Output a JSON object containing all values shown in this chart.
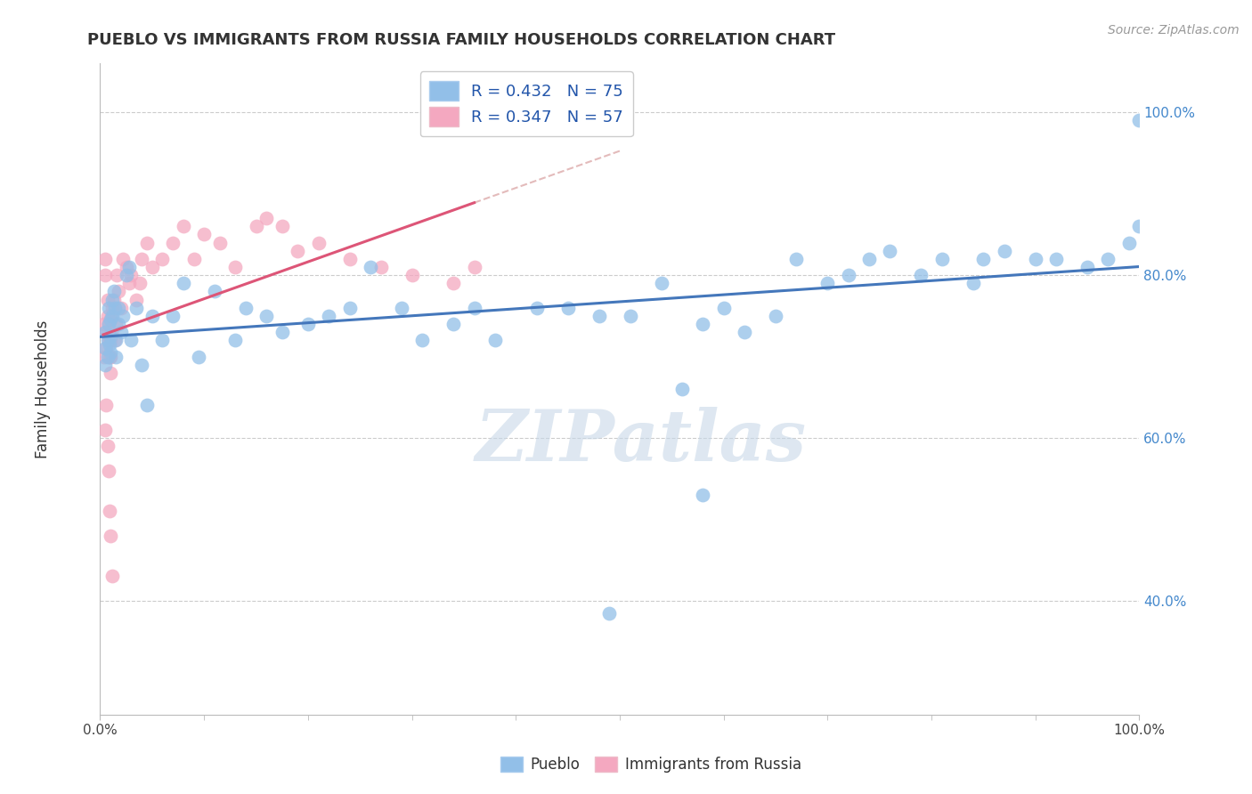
{
  "title": "PUEBLO VS IMMIGRANTS FROM RUSSIA FAMILY HOUSEHOLDS CORRELATION CHART",
  "source": "Source: ZipAtlas.com",
  "ylabel": "Family Households",
  "watermark": "ZIPatlas",
  "blue_color": "#92bfe8",
  "pink_color": "#f4a8c0",
  "blue_line_color": "#4477bb",
  "pink_line_color": "#dd5577",
  "pink_dash_color": "#ddaaaa",
  "grid_color": "#cccccc",
  "background_color": "#ffffff",
  "legend_R_N": [
    {
      "R": "0.432",
      "N": "75",
      "color": "#92bfe8"
    },
    {
      "R": "0.347",
      "N": "57",
      "color": "#f4a8c0"
    }
  ],
  "xlim": [
    0.0,
    1.0
  ],
  "ylim": [
    0.26,
    1.06
  ],
  "yticks": [
    0.4,
    0.6,
    0.8,
    1.0
  ],
  "ytick_labels": [
    "40.0%",
    "60.0%",
    "80.0%",
    "100.0%"
  ],
  "xticks": [
    0.0,
    1.0
  ],
  "xtick_labels": [
    "0.0%",
    "100.0%"
  ],
  "pueblo_x": [
    0.005,
    0.005,
    0.005,
    0.007,
    0.007,
    0.008,
    0.008,
    0.009,
    0.01,
    0.01,
    0.01,
    0.012,
    0.012,
    0.013,
    0.014,
    0.015,
    0.015,
    0.018,
    0.018,
    0.02,
    0.022,
    0.025,
    0.028,
    0.03,
    0.035,
    0.04,
    0.045,
    0.05,
    0.06,
    0.07,
    0.08,
    0.095,
    0.11,
    0.13,
    0.14,
    0.16,
    0.175,
    0.2,
    0.22,
    0.24,
    0.26,
    0.29,
    0.31,
    0.34,
    0.36,
    0.38,
    0.42,
    0.45,
    0.48,
    0.51,
    0.54,
    0.56,
    0.58,
    0.6,
    0.62,
    0.65,
    0.67,
    0.7,
    0.72,
    0.74,
    0.76,
    0.79,
    0.81,
    0.84,
    0.85,
    0.87,
    0.9,
    0.92,
    0.95,
    0.97,
    0.99,
    1.0,
    1.0,
    0.58,
    0.49
  ],
  "pueblo_y": [
    0.69,
    0.71,
    0.73,
    0.7,
    0.72,
    0.74,
    0.76,
    0.715,
    0.705,
    0.725,
    0.745,
    0.77,
    0.75,
    0.78,
    0.76,
    0.72,
    0.7,
    0.74,
    0.76,
    0.73,
    0.75,
    0.8,
    0.81,
    0.72,
    0.76,
    0.69,
    0.64,
    0.75,
    0.72,
    0.75,
    0.79,
    0.7,
    0.78,
    0.72,
    0.76,
    0.75,
    0.73,
    0.74,
    0.75,
    0.76,
    0.81,
    0.76,
    0.72,
    0.74,
    0.76,
    0.72,
    0.76,
    0.76,
    0.75,
    0.75,
    0.79,
    0.66,
    0.74,
    0.76,
    0.73,
    0.75,
    0.82,
    0.79,
    0.8,
    0.82,
    0.83,
    0.8,
    0.82,
    0.79,
    0.82,
    0.83,
    0.82,
    0.82,
    0.81,
    0.82,
    0.84,
    0.86,
    0.99,
    0.53,
    0.385
  ],
  "russia_x": [
    0.003,
    0.004,
    0.005,
    0.005,
    0.006,
    0.006,
    0.007,
    0.007,
    0.008,
    0.008,
    0.009,
    0.009,
    0.01,
    0.01,
    0.01,
    0.011,
    0.011,
    0.012,
    0.013,
    0.014,
    0.015,
    0.016,
    0.018,
    0.02,
    0.022,
    0.025,
    0.028,
    0.03,
    0.035,
    0.038,
    0.04,
    0.045,
    0.05,
    0.06,
    0.07,
    0.08,
    0.09,
    0.1,
    0.115,
    0.13,
    0.15,
    0.16,
    0.175,
    0.19,
    0.21,
    0.24,
    0.27,
    0.3,
    0.34,
    0.36,
    0.005,
    0.006,
    0.007,
    0.008,
    0.009,
    0.01,
    0.012
  ],
  "russia_y": [
    0.74,
    0.7,
    0.8,
    0.82,
    0.71,
    0.73,
    0.75,
    0.77,
    0.72,
    0.74,
    0.7,
    0.72,
    0.68,
    0.7,
    0.72,
    0.73,
    0.75,
    0.76,
    0.77,
    0.72,
    0.74,
    0.8,
    0.78,
    0.76,
    0.82,
    0.81,
    0.79,
    0.8,
    0.77,
    0.79,
    0.82,
    0.84,
    0.81,
    0.82,
    0.84,
    0.86,
    0.82,
    0.85,
    0.84,
    0.81,
    0.86,
    0.87,
    0.86,
    0.83,
    0.84,
    0.82,
    0.81,
    0.8,
    0.79,
    0.81,
    0.61,
    0.64,
    0.59,
    0.56,
    0.51,
    0.48,
    0.43
  ]
}
